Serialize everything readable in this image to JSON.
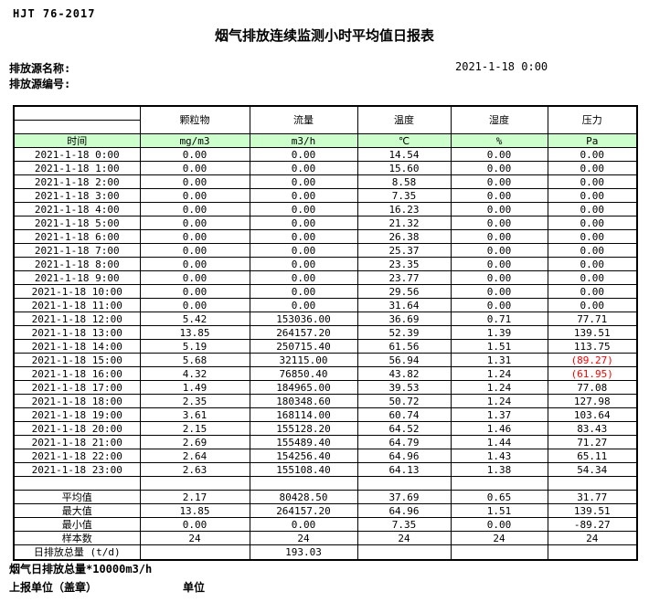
{
  "page": {
    "standard_code": "HJT 76-2017",
    "title": "烟气排放连续监测小时平均值日报表",
    "source_name_label": "排放源名称:",
    "source_code_label": "排放源编号:",
    "report_datetime": "2021-1-18 0:00"
  },
  "table": {
    "columns": [
      "颗粒物",
      "流量",
      "温度",
      "湿度",
      "压力"
    ],
    "units_row": {
      "time_label": "时间",
      "units": [
        "mg/m3",
        "m3/h",
        "℃",
        "%",
        "Pa"
      ]
    },
    "rows": [
      {
        "time": "2021-1-18 0:00",
        "values": [
          "0.00",
          "0.00",
          "14.54",
          "0.00",
          "0.00"
        ]
      },
      {
        "time": "2021-1-18 1:00",
        "values": [
          "0.00",
          "0.00",
          "15.60",
          "0.00",
          "0.00"
        ]
      },
      {
        "time": "2021-1-18 2:00",
        "values": [
          "0.00",
          "0.00",
          "8.58",
          "0.00",
          "0.00"
        ]
      },
      {
        "time": "2021-1-18 3:00",
        "values": [
          "0.00",
          "0.00",
          "7.35",
          "0.00",
          "0.00"
        ]
      },
      {
        "time": "2021-1-18 4:00",
        "values": [
          "0.00",
          "0.00",
          "16.23",
          "0.00",
          "0.00"
        ]
      },
      {
        "time": "2021-1-18 5:00",
        "values": [
          "0.00",
          "0.00",
          "21.32",
          "0.00",
          "0.00"
        ]
      },
      {
        "time": "2021-1-18 6:00",
        "values": [
          "0.00",
          "0.00",
          "26.38",
          "0.00",
          "0.00"
        ]
      },
      {
        "time": "2021-1-18 7:00",
        "values": [
          "0.00",
          "0.00",
          "25.37",
          "0.00",
          "0.00"
        ]
      },
      {
        "time": "2021-1-18 8:00",
        "values": [
          "0.00",
          "0.00",
          "23.35",
          "0.00",
          "0.00"
        ]
      },
      {
        "time": "2021-1-18 9:00",
        "values": [
          "0.00",
          "0.00",
          "23.77",
          "0.00",
          "0.00"
        ]
      },
      {
        "time": "2021-1-18 10:00",
        "values": [
          "0.00",
          "0.00",
          "29.56",
          "0.00",
          "0.00"
        ]
      },
      {
        "time": "2021-1-18 11:00",
        "values": [
          "0.00",
          "0.00",
          "31.64",
          "0.00",
          "0.00"
        ]
      },
      {
        "time": "2021-1-18 12:00",
        "values": [
          "5.42",
          "153036.00",
          "36.69",
          "0.71",
          "77.71"
        ]
      },
      {
        "time": "2021-1-18 13:00",
        "values": [
          "13.85",
          "264157.20",
          "52.39",
          "1.39",
          "139.51"
        ]
      },
      {
        "time": "2021-1-18 14:00",
        "values": [
          "5.19",
          "250715.40",
          "61.56",
          "1.51",
          "113.75"
        ]
      },
      {
        "time": "2021-1-18 15:00",
        "values": [
          "5.68",
          "32115.00",
          "56.94",
          "1.31",
          "(89.27)"
        ]
      },
      {
        "time": "2021-1-18 16:00",
        "values": [
          "4.32",
          "76850.40",
          "43.82",
          "1.24",
          "(61.95)"
        ]
      },
      {
        "time": "2021-1-18 17:00",
        "values": [
          "1.49",
          "184965.00",
          "39.53",
          "1.24",
          "77.08"
        ]
      },
      {
        "time": "2021-1-18 18:00",
        "values": [
          "2.35",
          "180348.60",
          "50.72",
          "1.24",
          "127.98"
        ]
      },
      {
        "time": "2021-1-18 19:00",
        "values": [
          "3.61",
          "168114.00",
          "60.74",
          "1.37",
          "103.64"
        ]
      },
      {
        "time": "2021-1-18 20:00",
        "values": [
          "2.15",
          "155128.20",
          "64.52",
          "1.46",
          "83.43"
        ]
      },
      {
        "time": "2021-1-18 21:00",
        "values": [
          "2.69",
          "155489.40",
          "64.79",
          "1.44",
          "71.27"
        ]
      },
      {
        "time": "2021-1-18 22:00",
        "values": [
          "2.64",
          "154256.40",
          "64.96",
          "1.43",
          "65.11"
        ]
      },
      {
        "time": "2021-1-18 23:00",
        "values": [
          "2.63",
          "155108.40",
          "64.13",
          "1.38",
          "54.34"
        ]
      }
    ],
    "summary": [
      {
        "label": "平均值",
        "values": [
          "2.17",
          "80428.50",
          "37.69",
          "0.65",
          "31.77"
        ]
      },
      {
        "label": "最大值",
        "values": [
          "13.85",
          "264157.20",
          "64.96",
          "1.51",
          "139.51"
        ]
      },
      {
        "label": "最小值",
        "values": [
          "0.00",
          "0.00",
          "7.35",
          "0.00",
          "-89.27"
        ]
      },
      {
        "label": "样本数",
        "values": [
          "24",
          "24",
          "24",
          "24",
          "24"
        ]
      }
    ],
    "daily_total": {
      "label": "日排放总量 (t/d)",
      "flow_value": "193.03"
    }
  },
  "footer": {
    "note": "烟气日排放总量*10000m3/h",
    "report_unit_label": "上报单位（盖章）",
    "unit_label": "单位"
  },
  "colors": {
    "header_green": "#ccffcc",
    "alert_red": "#ff0000"
  }
}
